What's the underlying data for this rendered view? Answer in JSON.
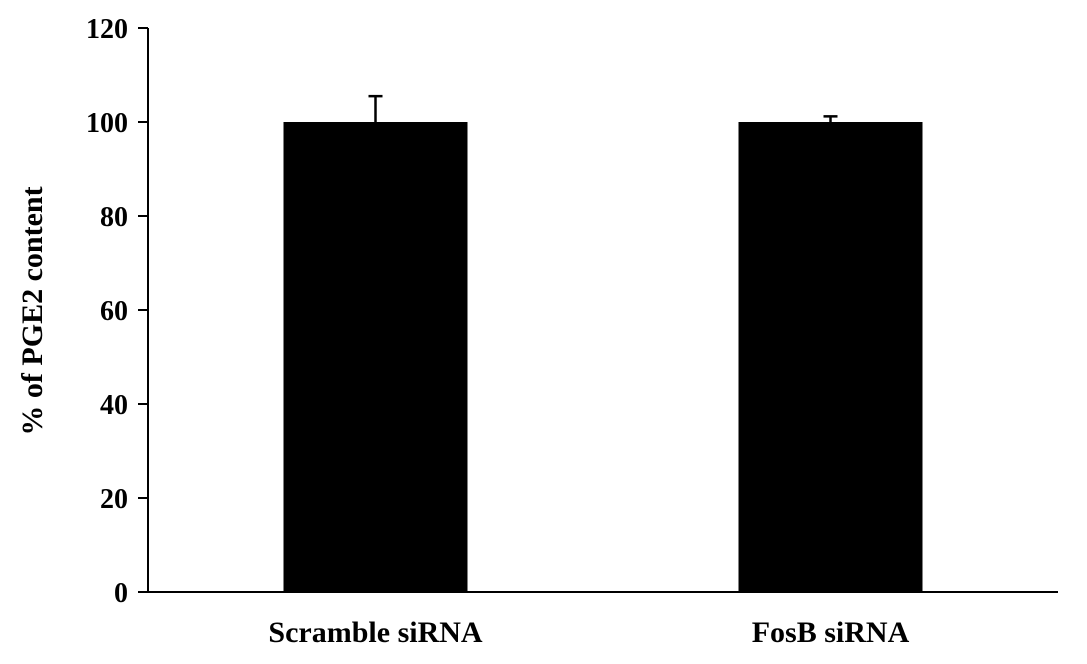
{
  "chart_data": {
    "type": "bar",
    "title": "",
    "xlabel": "",
    "ylabel": "% of PGE2 content",
    "categories": [
      "Scramble siRNA",
      "FosB siRNA"
    ],
    "values": [
      100,
      100
    ],
    "errors": [
      5.5,
      1.2
    ],
    "ylim": [
      0,
      120
    ],
    "yticks": [
      0,
      20,
      40,
      60,
      80,
      100,
      120
    ],
    "bar_color": "#000000",
    "grid": false,
    "legend": "none"
  }
}
